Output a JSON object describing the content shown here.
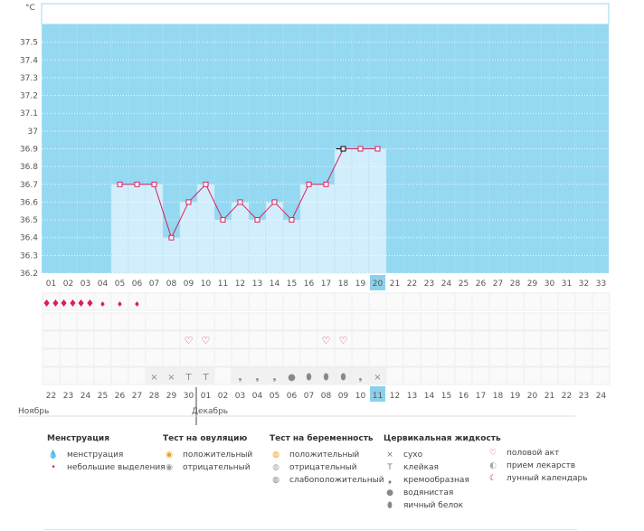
{
  "chart_data": {
    "type": "line",
    "title": "",
    "ylabel": "°C",
    "ylim": [
      36.2,
      37.6
    ],
    "yticks": [
      "36.2",
      "36.3",
      "36.4",
      "36.5",
      "36.6",
      "36.7",
      "36.8",
      "36.9",
      "37",
      "37.1",
      "37.2",
      "37.3",
      "37.4",
      "37.5"
    ],
    "cycle_days": [
      "01",
      "02",
      "03",
      "04",
      "05",
      "06",
      "07",
      "08",
      "09",
      "10",
      "11",
      "12",
      "13",
      "14",
      "15",
      "16",
      "17",
      "18",
      "19",
      "20",
      "21",
      "22",
      "23",
      "24",
      "25",
      "26",
      "27",
      "28",
      "29",
      "30",
      "31",
      "32",
      "33"
    ],
    "current_cycle_day": "20",
    "temperatures": [
      null,
      null,
      null,
      null,
      36.7,
      36.7,
      36.7,
      36.4,
      36.6,
      36.7,
      36.5,
      36.6,
      36.5,
      36.6,
      36.5,
      36.7,
      36.7,
      36.9,
      36.9,
      36.9,
      null,
      null,
      null,
      null,
      null,
      null,
      null,
      null,
      null,
      null,
      null,
      null,
      null
    ],
    "highlighted_point_day": "18",
    "dates": [
      "22",
      "23",
      "24",
      "25",
      "26",
      "27",
      "28",
      "29",
      "30",
      "01",
      "02",
      "03",
      "04",
      "05",
      "06",
      "07",
      "08",
      "09",
      "10",
      "11",
      "12",
      "13",
      "14",
      "15",
      "16",
      "17",
      "18",
      "19",
      "20",
      "21",
      "22",
      "23",
      "24"
    ],
    "red_date_indices": [
      2,
      3,
      9,
      10,
      16,
      17,
      29,
      30
    ],
    "today_date_index": 19,
    "month_labels": [
      {
        "label": "Ноябрь",
        "index": 0
      },
      {
        "label": "Декабрь",
        "index": 9
      }
    ],
    "row_menstruation": [
      2,
      2,
      2,
      1,
      1,
      1,
      0,
      0,
      0,
      0,
      0,
      0,
      0,
      0,
      0,
      0,
      0,
      0,
      0,
      0,
      0,
      0,
      0,
      0,
      0,
      0,
      0,
      0,
      0,
      0,
      0,
      0,
      0
    ],
    "row_intercourse": [
      0,
      0,
      0,
      0,
      0,
      0,
      0,
      0,
      1,
      1,
      0,
      0,
      0,
      0,
      0,
      0,
      1,
      1,
      0,
      0,
      0,
      0,
      0,
      0,
      0,
      0,
      0,
      0,
      0,
      0,
      0,
      0,
      0
    ],
    "row_cervical": [
      "",
      "",
      "",
      "",
      "",
      "",
      "dry",
      "dry",
      "sticky",
      "sticky",
      "",
      "creamy",
      "creamy",
      "creamy",
      "watery",
      "eggwhite",
      "eggwhite",
      "eggwhite",
      "creamy",
      "dry",
      "",
      "",
      "",
      "",
      "",
      "",
      "",
      "",
      "",
      "",
      "",
      "",
      ""
    ]
  },
  "colors": {
    "plot_bg": "#95d8f2",
    "bar_fill": "#d2eefc",
    "line": "#d6205f",
    "red_text": "#d6205f",
    "today_bg": "#8dd0eb"
  },
  "legend": {
    "menstruation": {
      "title": "Менструация",
      "items": [
        {
          "icon": "drop-double-icon",
          "label": "менструация"
        },
        {
          "icon": "drop-small-icon",
          "label": "небольшие выделения"
        }
      ]
    },
    "ovulation": {
      "title": "Тест на овуляцию",
      "items": [
        {
          "icon": "test-positive-icon",
          "label": "положительный"
        },
        {
          "icon": "test-negative-icon",
          "label": "отрицательный"
        }
      ]
    },
    "pregnancy": {
      "title": "Тест на беременность",
      "items": [
        {
          "icon": "preg-positive-icon",
          "label": "положительный"
        },
        {
          "icon": "preg-negative-icon",
          "label": "отрицательный"
        },
        {
          "icon": "preg-weak-icon",
          "label": "слабоположительный"
        }
      ]
    },
    "cervical": {
      "title": "Цервикальная жидкость",
      "items": [
        {
          "icon": "cross-icon",
          "label": "сухо"
        },
        {
          "icon": "t-icon",
          "label": "клейкая"
        },
        {
          "icon": "comma-icon",
          "label": "кремообразная"
        },
        {
          "icon": "drop-icon",
          "label": "водянистая"
        },
        {
          "icon": "egg-icon",
          "label": "яичный белок"
        }
      ]
    },
    "other": {
      "items": [
        {
          "icon": "heart-icon",
          "label": "половой акт"
        },
        {
          "icon": "pill-icon",
          "label": "прием лекарств"
        },
        {
          "icon": "moon-icon",
          "label": "лунный календарь"
        }
      ]
    }
  }
}
